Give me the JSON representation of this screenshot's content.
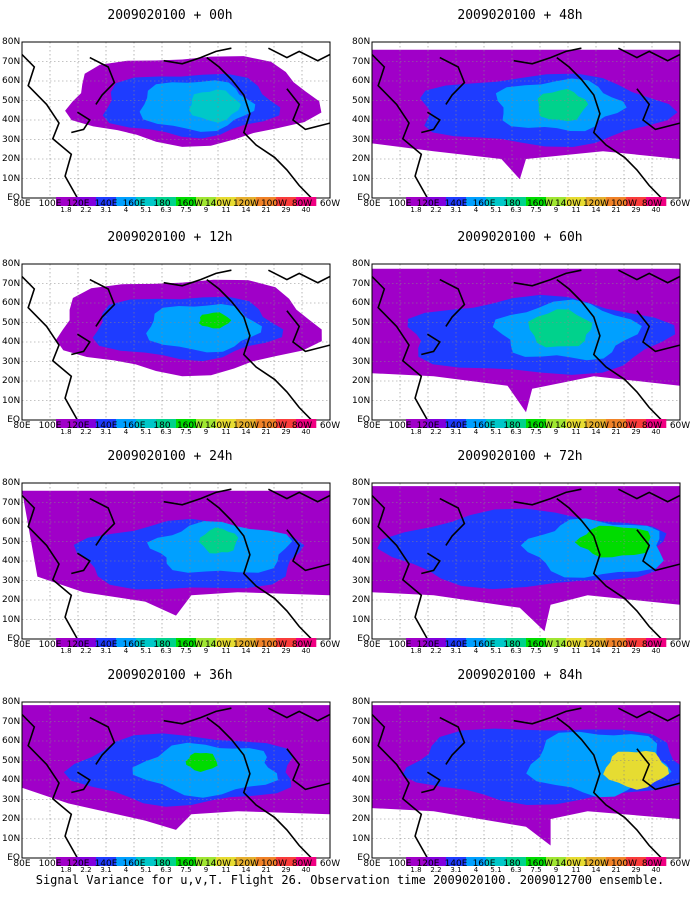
{
  "caption": "Signal Variance for u,v,T. Flight 26. Observation time 2009020100. 2009012700 ensemble.",
  "colorbar": {
    "labels": [
      "1.8",
      "2.2",
      "3.1",
      "4",
      "5.1",
      "6.3",
      "7.5",
      "9",
      "11",
      "14",
      "21",
      "29",
      "40"
    ],
    "colors": [
      "#a000c8",
      "#8200dc",
      "#1e3cff",
      "#00a0ff",
      "#00c8c8",
      "#00d28c",
      "#00dc00",
      "#a0e632",
      "#e6dc32",
      "#e6af2d",
      "#f08228",
      "#fa3c3c",
      "#f00082"
    ]
  },
  "lat_labels": [
    "80N",
    "70N",
    "60N",
    "50N",
    "40N",
    "30N",
    "20N",
    "10N",
    "EQ"
  ],
  "lon_labels": [
    "80E",
    "100E",
    "120E",
    "140E",
    "160E",
    "180",
    "160W",
    "140W",
    "120W",
    "100W",
    "80W",
    "60W"
  ],
  "chart_data": [
    {
      "type": "heatmap",
      "title": "2009020100 + 00h",
      "variable": "signal variance"
    },
    {
      "type": "heatmap",
      "title": "2009020100 + 48h",
      "variable": "signal variance"
    },
    {
      "type": "heatmap",
      "title": "2009020100 + 12h",
      "variable": "signal variance"
    },
    {
      "type": "heatmap",
      "title": "2009020100 + 60h",
      "variable": "signal variance"
    },
    {
      "type": "heatmap",
      "title": "2009020100 + 24h",
      "variable": "signal variance"
    },
    {
      "type": "heatmap",
      "title": "2009020100 + 72h",
      "variable": "signal variance"
    },
    {
      "type": "heatmap",
      "title": "2009020100 + 36h",
      "variable": "signal variance"
    },
    {
      "type": "heatmap",
      "title": "2009020100 + 84h",
      "variable": "signal variance"
    }
  ]
}
